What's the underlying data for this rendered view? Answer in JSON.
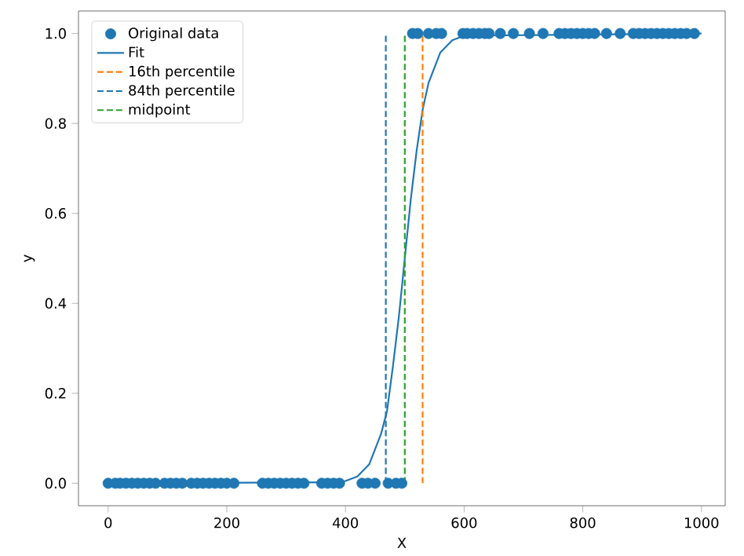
{
  "chart_data": {
    "type": "scatter",
    "xlabel": "X",
    "ylabel": "y",
    "xlim": [
      -50,
      1040
    ],
    "ylim": [
      -0.05,
      1.05
    ],
    "xticks": [
      0,
      200,
      400,
      600,
      800,
      1000
    ],
    "yticks": [
      {
        "value": 0,
        "label": "0.0"
      },
      {
        "value": 0.2,
        "label": "0.2"
      },
      {
        "value": 0.4,
        "label": "0.4"
      },
      {
        "value": 0.6,
        "label": "0.6"
      },
      {
        "value": 0.8,
        "label": "0.8"
      },
      {
        "value": 1.0,
        "label": "1.0"
      }
    ],
    "grid": false,
    "legend": "top left",
    "series": [
      {
        "name": "Original data",
        "marker": "circle",
        "color": "#1f77b4",
        "x": [
          0,
          12,
          20,
          30,
          40,
          50,
          60,
          70,
          80,
          95,
          105,
          115,
          125,
          140,
          150,
          160,
          170,
          180,
          190,
          200,
          212,
          260,
          270,
          280,
          290,
          300,
          310,
          320,
          330,
          360,
          370,
          380,
          390,
          428,
          438,
          450,
          472,
          485,
          495,
          513,
          522,
          540,
          553,
          562,
          598,
          605,
          615,
          625,
          635,
          642,
          661,
          683,
          710,
          733,
          760,
          770,
          780,
          790,
          800,
          810,
          820,
          840,
          863,
          885,
          895,
          905,
          915,
          925,
          935,
          945,
          955,
          965,
          975,
          988
        ],
        "values": [
          0,
          0,
          0,
          0,
          0,
          0,
          0,
          0,
          0,
          0,
          0,
          0,
          0,
          0,
          0,
          0,
          0,
          0,
          0,
          0,
          0,
          0,
          0,
          0,
          0,
          0,
          0,
          0,
          0,
          0,
          0,
          0,
          0,
          0,
          0,
          0,
          0,
          0,
          0,
          1,
          1,
          1,
          1,
          1,
          1,
          1,
          1,
          1,
          1,
          1,
          1,
          1,
          1,
          1,
          1,
          1,
          1,
          1,
          1,
          1,
          1,
          1,
          1,
          1,
          1,
          1,
          1,
          1,
          1,
          1,
          1,
          1,
          1,
          1
        ]
      },
      {
        "name": "Fit",
        "type": "line",
        "marker": "none",
        "line_style": "solid",
        "color": "#1f77b4",
        "x": [
          0,
          380,
          400,
          420,
          440,
          460,
          470,
          480,
          490,
          500,
          510,
          520,
          530,
          540,
          560,
          580,
          600,
          1000
        ],
        "values": [
          0,
          0.002,
          0.005,
          0.015,
          0.042,
          0.11,
          0.16,
          0.26,
          0.37,
          0.5,
          0.63,
          0.74,
          0.83,
          0.89,
          0.958,
          0.985,
          0.995,
          1
        ]
      },
      {
        "name": "16th percentile",
        "type": "line",
        "marker": "none",
        "line_style": "dashed",
        "color": "#ff7f0e",
        "x": [
          530,
          530
        ],
        "values": [
          0,
          1
        ]
      },
      {
        "name": "84th percentile",
        "type": "line",
        "marker": "none",
        "line_style": "dashed",
        "color": "#1f77b4",
        "x": [
          468,
          468
        ],
        "values": [
          0,
          1
        ]
      },
      {
        "name": "midpoint",
        "type": "line",
        "marker": "none",
        "line_style": "dashed",
        "color": "#2ca02c",
        "x": [
          500,
          500
        ],
        "values": [
          0,
          1
        ]
      }
    ]
  }
}
